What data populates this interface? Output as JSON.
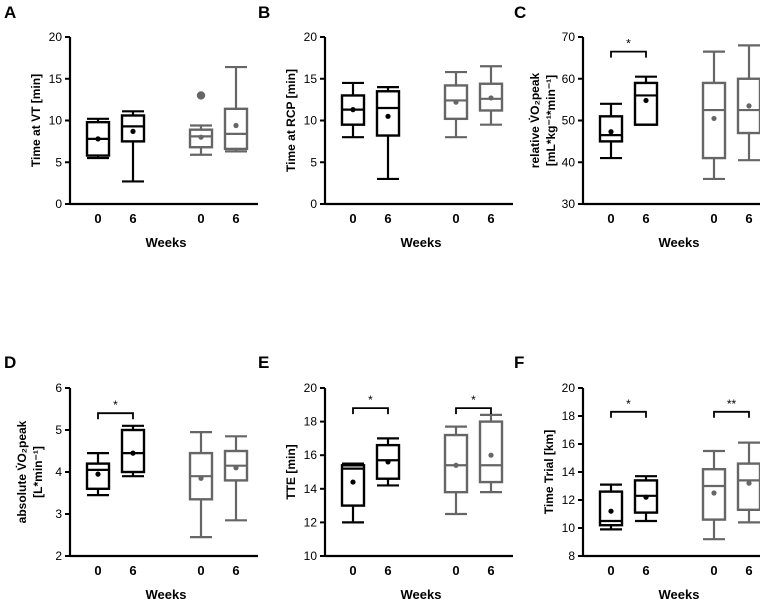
{
  "chart_data": [
    {
      "panel": "A",
      "type": "box",
      "ylabel": "Time at VT [min]",
      "xlabel": "Weeks",
      "ylim": [
        0,
        20
      ],
      "yticks": [
        "0",
        "5",
        "10",
        "15",
        "20"
      ],
      "groups": [
        {
          "name": "group-1",
          "color": "#000000",
          "boxes": [
            {
              "week": "0",
              "min": 5.5,
              "q1": 5.8,
              "median": 7.8,
              "q3": 9.8,
              "max": 10.2,
              "mean": 7.8,
              "outliers": []
            },
            {
              "week": "6",
              "min": 2.7,
              "q1": 7.5,
              "median": 9.3,
              "q3": 10.6,
              "max": 11.1,
              "mean": 8.7,
              "outliers": []
            }
          ]
        },
        {
          "name": "group-2",
          "color": "#666666",
          "boxes": [
            {
              "week": "0",
              "min": 5.9,
              "q1": 6.8,
              "median": 8.1,
              "q3": 8.9,
              "max": 9.4,
              "mean": 8.0,
              "outliers": [
                13.0
              ]
            },
            {
              "week": "6",
              "min": 6.3,
              "q1": 6.6,
              "median": 8.4,
              "q3": 11.4,
              "max": 16.4,
              "mean": 9.4,
              "outliers": []
            }
          ]
        }
      ],
      "significance": []
    },
    {
      "panel": "B",
      "type": "box",
      "ylabel": "Time at RCP [min]",
      "xlabel": "Weeks",
      "ylim": [
        0,
        20
      ],
      "yticks": [
        "0",
        "5",
        "10",
        "15",
        "20"
      ],
      "groups": [
        {
          "name": "group-1",
          "color": "#000000",
          "boxes": [
            {
              "week": "0",
              "min": 8.0,
              "q1": 9.5,
              "median": 11.3,
              "q3": 13.0,
              "max": 14.5,
              "mean": 11.3,
              "outliers": []
            },
            {
              "week": "6",
              "min": 3.0,
              "q1": 8.2,
              "median": 11.5,
              "q3": 13.5,
              "max": 14.0,
              "mean": 10.5,
              "outliers": []
            }
          ]
        },
        {
          "name": "group-2",
          "color": "#666666",
          "boxes": [
            {
              "week": "0",
              "min": 8.0,
              "q1": 10.2,
              "median": 12.4,
              "q3": 14.2,
              "max": 15.8,
              "mean": 12.2,
              "outliers": []
            },
            {
              "week": "6",
              "min": 9.5,
              "q1": 11.2,
              "median": 12.6,
              "q3": 14.4,
              "max": 16.5,
              "mean": 12.7,
              "outliers": []
            }
          ]
        }
      ],
      "significance": []
    },
    {
      "panel": "C",
      "type": "box",
      "ylabel_line1": "relative V̇O₂peak",
      "ylabel_line2": "[mL*kg⁻¹*min⁻¹]",
      "xlabel": "Weeks",
      "ylim": [
        30,
        70
      ],
      "yticks": [
        "30",
        "40",
        "50",
        "60",
        "70"
      ],
      "groups": [
        {
          "name": "group-1",
          "color": "#000000",
          "boxes": [
            {
              "week": "0",
              "min": 41.0,
              "q1": 45.0,
              "median": 46.5,
              "q3": 51.0,
              "max": 54.0,
              "mean": 47.3,
              "outliers": []
            },
            {
              "week": "6",
              "min": 49.0,
              "q1": 49.0,
              "median": 56.0,
              "q3": 59.0,
              "max": 60.5,
              "mean": 54.8,
              "outliers": []
            }
          ]
        },
        {
          "name": "group-2",
          "color": "#666666",
          "boxes": [
            {
              "week": "0",
              "min": 36.0,
              "q1": 41.0,
              "median": 52.5,
              "q3": 59.0,
              "max": 66.5,
              "mean": 50.5,
              "outliers": []
            },
            {
              "week": "6",
              "min": 40.5,
              "q1": 47.0,
              "median": 52.5,
              "q3": 60.0,
              "max": 68.0,
              "mean": 53.5,
              "outliers": []
            }
          ]
        }
      ],
      "significance": [
        {
          "group": 0,
          "label": "*",
          "y": 66.5
        }
      ]
    },
    {
      "panel": "D",
      "type": "box",
      "ylabel_line1": "absolute V̇O₂peak",
      "ylabel_line2": "[L*min⁻¹]",
      "xlabel": "Weeks",
      "ylim": [
        2,
        6
      ],
      "yticks": [
        "2",
        "3",
        "4",
        "5",
        "6"
      ],
      "groups": [
        {
          "name": "group-1",
          "color": "#000000",
          "boxes": [
            {
              "week": "0",
              "min": 3.45,
              "q1": 3.6,
              "median": 4.05,
              "q3": 4.2,
              "max": 4.45,
              "mean": 3.95,
              "outliers": []
            },
            {
              "week": "6",
              "min": 3.9,
              "q1": 4.0,
              "median": 4.45,
              "q3": 5.0,
              "max": 5.1,
              "mean": 4.45,
              "outliers": []
            }
          ]
        },
        {
          "name": "group-2",
          "color": "#666666",
          "boxes": [
            {
              "week": "0",
              "min": 2.45,
              "q1": 3.35,
              "median": 3.9,
              "q3": 4.45,
              "max": 4.95,
              "mean": 3.85,
              "outliers": []
            },
            {
              "week": "6",
              "min": 2.85,
              "q1": 3.8,
              "median": 4.15,
              "q3": 4.5,
              "max": 4.85,
              "mean": 4.1,
              "outliers": []
            }
          ]
        }
      ],
      "significance": [
        {
          "group": 0,
          "label": "*",
          "y": 5.4
        }
      ]
    },
    {
      "panel": "E",
      "type": "box",
      "ylabel": "TTE [min]",
      "xlabel": "Weeks",
      "ylim": [
        10,
        20
      ],
      "yticks": [
        "10",
        "12",
        "14",
        "16",
        "18",
        "20"
      ],
      "groups": [
        {
          "name": "group-1",
          "color": "#000000",
          "boxes": [
            {
              "week": "0",
              "min": 12.0,
              "q1": 13.0,
              "median": 15.2,
              "q3": 15.4,
              "max": 15.5,
              "mean": 14.4,
              "outliers": []
            },
            {
              "week": "6",
              "min": 14.2,
              "q1": 14.6,
              "median": 15.7,
              "q3": 16.6,
              "max": 17.0,
              "mean": 15.6,
              "outliers": []
            }
          ]
        },
        {
          "name": "group-2",
          "color": "#666666",
          "boxes": [
            {
              "week": "0",
              "min": 12.5,
              "q1": 13.8,
              "median": 15.4,
              "q3": 17.2,
              "max": 17.7,
              "mean": 15.4,
              "outliers": []
            },
            {
              "week": "6",
              "min": 13.8,
              "q1": 14.4,
              "median": 15.4,
              "q3": 18.0,
              "max": 18.4,
              "mean": 16.0,
              "outliers": []
            }
          ]
        }
      ],
      "significance": [
        {
          "group": 0,
          "label": "*",
          "y": 18.8
        },
        {
          "group": 1,
          "label": "*",
          "y": 18.8
        }
      ]
    },
    {
      "panel": "F",
      "type": "box",
      "ylabel": "Time Trial [km]",
      "xlabel": "Weeks",
      "ylim": [
        8,
        20
      ],
      "yticks": [
        "8",
        "10",
        "12",
        "14",
        "16",
        "18",
        "20"
      ],
      "groups": [
        {
          "name": "group-1",
          "color": "#000000",
          "boxes": [
            {
              "week": "0",
              "min": 9.9,
              "q1": 10.2,
              "median": 10.5,
              "q3": 12.6,
              "max": 13.1,
              "mean": 11.2,
              "outliers": []
            },
            {
              "week": "6",
              "min": 10.5,
              "q1": 11.1,
              "median": 12.3,
              "q3": 13.4,
              "max": 13.7,
              "mean": 12.2,
              "outliers": []
            }
          ]
        },
        {
          "name": "group-2",
          "color": "#666666",
          "boxes": [
            {
              "week": "0",
              "min": 9.2,
              "q1": 10.6,
              "median": 13.0,
              "q3": 14.2,
              "max": 15.5,
              "mean": 12.5,
              "outliers": []
            },
            {
              "week": "6",
              "min": 10.4,
              "q1": 11.3,
              "median": 13.4,
              "q3": 14.6,
              "max": 16.1,
              "mean": 13.2,
              "outliers": []
            }
          ]
        }
      ],
      "significance": [
        {
          "group": 0,
          "label": "*",
          "y": 18.3
        },
        {
          "group": 1,
          "label": "**",
          "y": 18.3
        }
      ]
    }
  ]
}
